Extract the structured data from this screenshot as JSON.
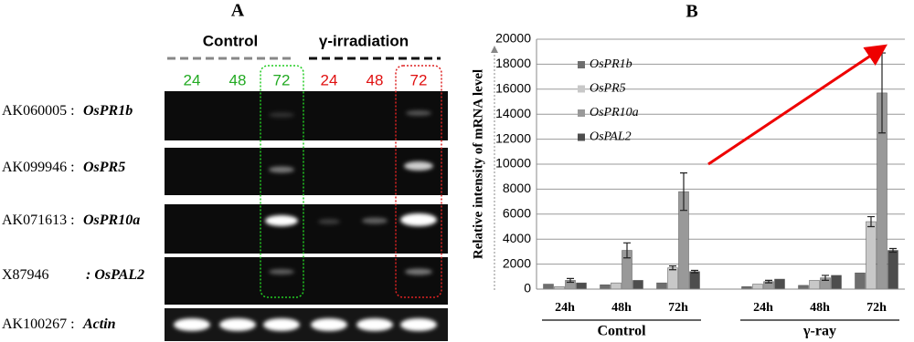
{
  "panel_a": {
    "label": "A",
    "groups": [
      "Control",
      "γ-irradiation"
    ],
    "lanes": [
      "24",
      "48",
      "72",
      "24",
      "48",
      "72"
    ],
    "rows": [
      {
        "accession": "AK060005 :",
        "gene": "OsPR1b"
      },
      {
        "accession": "AK099946 :",
        "gene": "OsPR5"
      },
      {
        "accession": "AK071613 :",
        "gene": "OsPR10a"
      },
      {
        "accession": "X87946",
        "gene": ": OsPAL2"
      },
      {
        "accession": "AK100267 :",
        "gene": "Actin"
      }
    ]
  },
  "chart_data": {
    "type": "bar",
    "label": "B",
    "y_label": "Relative intensity of mRNA level",
    "categories": [
      "24h",
      "48h",
      "72h",
      "24h",
      "48h",
      "72h"
    ],
    "groups": [
      "Control",
      "γ-ray"
    ],
    "series": [
      {
        "name": "OsPR1b",
        "color": "#6e6e6e",
        "values": [
          400,
          350,
          500,
          200,
          300,
          1300
        ],
        "errors": [
          null,
          null,
          null,
          null,
          null,
          null
        ]
      },
      {
        "name": "OsPR5",
        "color": "#c8c8c8",
        "values": [
          200,
          500,
          1700,
          400,
          700,
          5400
        ],
        "errors": [
          null,
          null,
          150,
          null,
          null,
          400
        ]
      },
      {
        "name": "OsPR10a",
        "color": "#999999",
        "values": [
          700,
          3100,
          7800,
          600,
          900,
          15700
        ],
        "errors": [
          150,
          600,
          1500,
          100,
          200,
          3200
        ]
      },
      {
        "name": "OsPAL2",
        "color": "#4d4d4d",
        "values": [
          500,
          700,
          1400,
          800,
          1100,
          3100
        ],
        "errors": [
          null,
          null,
          100,
          null,
          null,
          150
        ]
      }
    ],
    "ylim": [
      0,
      20000
    ],
    "yticks": [
      0,
      2000,
      4000,
      6000,
      8000,
      10000,
      12000,
      14000,
      16000,
      18000,
      20000
    ],
    "grid": true
  }
}
